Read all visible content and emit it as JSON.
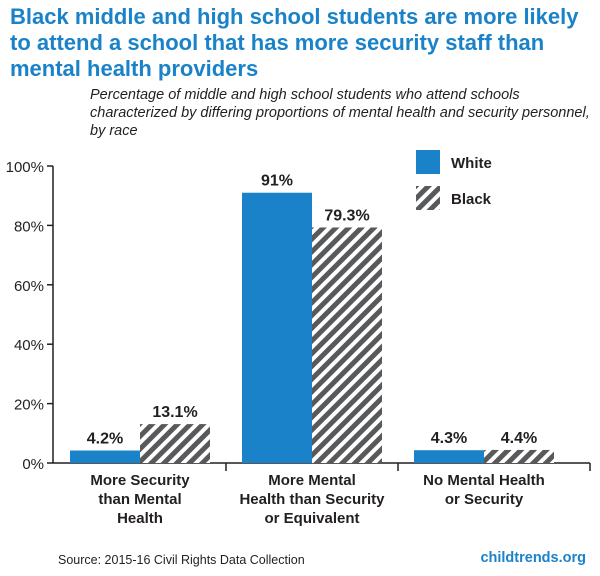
{
  "chart_data": {
    "type": "bar",
    "title": "Black middle and high school students are more likely to attend a school that has more security staff than mental health providers",
    "subtitle": "Percentage of middle and high school students who attend schools characterized by differing proportions of mental health and security personnel, by race",
    "categories": [
      [
        "More Security",
        "than Mental",
        "Health"
      ],
      [
        "More Mental",
        "Health than Security",
        "or Equivalent"
      ],
      [
        "No Mental Health",
        "or Security"
      ]
    ],
    "series": [
      {
        "name": "White",
        "values": [
          4.2,
          91,
          4.3
        ],
        "labels": [
          "4.2%",
          "91%",
          "4.3%"
        ],
        "color": "#1a82c9",
        "pattern": "solid"
      },
      {
        "name": "Black",
        "values": [
          13.1,
          79.3,
          4.4
        ],
        "labels": [
          "13.1%",
          "79.3%",
          "4.4%"
        ],
        "color": "#58595b",
        "pattern": "diagonal-stripes"
      }
    ],
    "y_ticks": [
      "0%",
      "20%",
      "40%",
      "60%",
      "80%",
      "100%"
    ],
    "ylim": [
      0,
      100
    ],
    "legend_position": "top-right",
    "grid": false
  },
  "footer": {
    "source": "Source: 2015-16 Civil Rights Data Collection",
    "brand": "childtrends.org"
  }
}
